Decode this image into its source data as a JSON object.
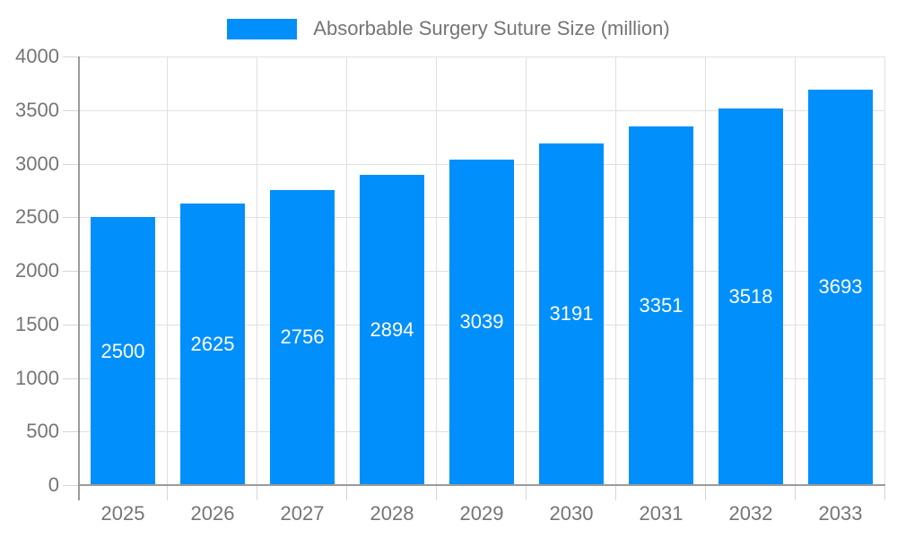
{
  "legend": {
    "label": "Absorbable Surgery Suture Size (million)"
  },
  "chart_data": {
    "type": "bar",
    "title": "Absorbable Surgery Suture Size (million)",
    "series_name": "Absorbable Surgery Suture Size (million)",
    "categories": [
      "2025",
      "2026",
      "2027",
      "2028",
      "2029",
      "2030",
      "2031",
      "2032",
      "2033"
    ],
    "values": [
      2500,
      2625,
      2756,
      2894,
      3039,
      3191,
      3351,
      3518,
      3693
    ],
    "xlabel": "",
    "ylabel": "",
    "ylim": [
      0,
      4000
    ],
    "yticks": [
      0,
      500,
      1000,
      1500,
      2000,
      2500,
      3000,
      3500,
      4000
    ],
    "grid": true,
    "legend_position": "top-center",
    "data_labels": "inside-center",
    "colors": {
      "bar": "#008FFB",
      "grid": "#E0E0E0",
      "tick": "#D6D6D6",
      "axis": "#9A9A9A",
      "tick_label": "#757575",
      "data_label": "#FFFFFF",
      "background": "#FFFFFF"
    }
  }
}
